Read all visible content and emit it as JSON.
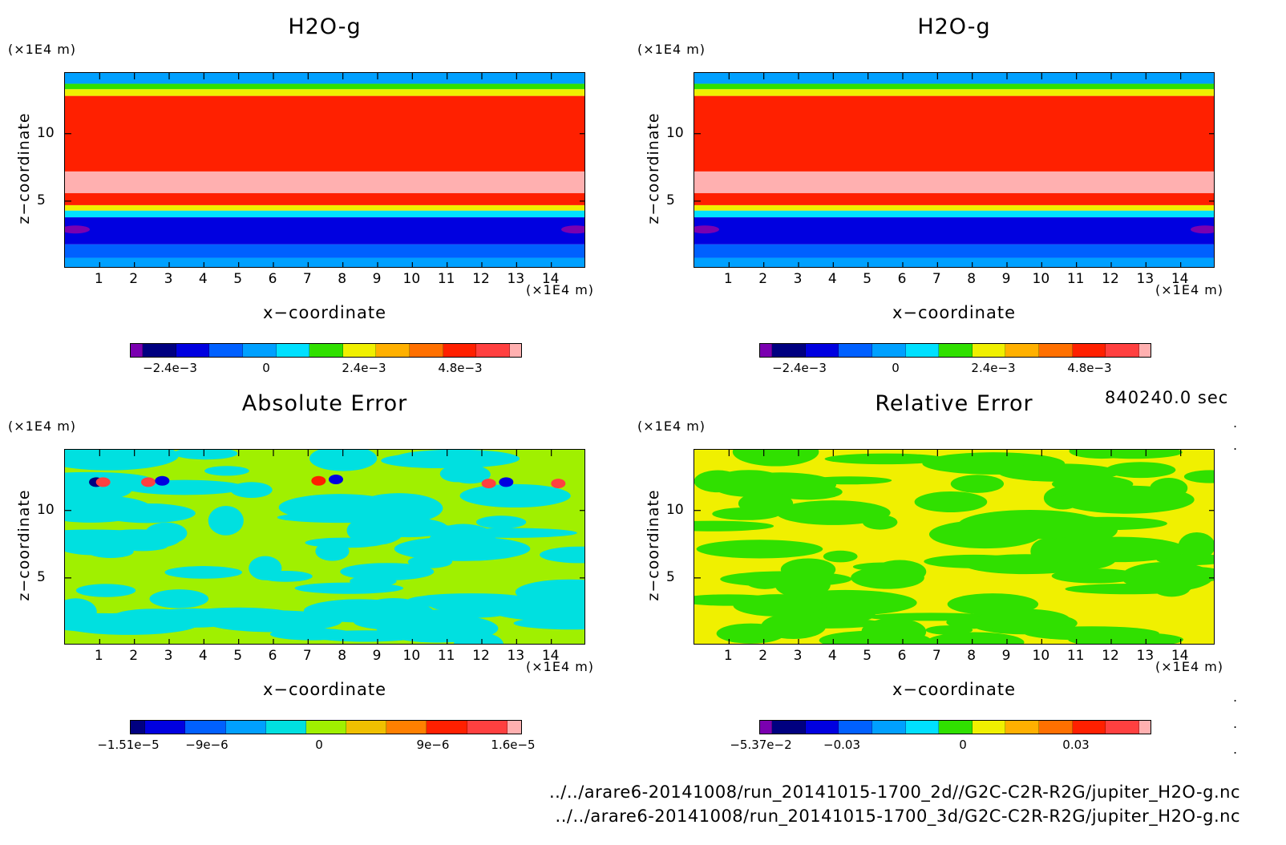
{
  "panels": [
    {
      "title": "H2O-g",
      "z_unit": "(×1E4 m)",
      "x_unit": "(×1E4 m)",
      "xlabel": "x−coordinate",
      "ylabel": "z−coordinate",
      "colorbar_labels": [
        "−2.4e−3",
        "0",
        "2.4e−3",
        "4.8e−3"
      ]
    },
    {
      "title": "H2O-g",
      "z_unit": "(×1E4 m)",
      "x_unit": "(×1E4 m)",
      "xlabel": "x−coordinate",
      "ylabel": "z−coordinate",
      "colorbar_labels": [
        "−2.4e−3",
        "0",
        "2.4e−3",
        "4.8e−3"
      ]
    },
    {
      "title": "Absolute Error",
      "z_unit": "(×1E4 m)",
      "x_unit": "(×1E4 m)",
      "xlabel": "x−coordinate",
      "ylabel": "z−coordinate",
      "colorbar_labels": [
        "−1.51e−5",
        "−9e−6",
        "0",
        "9e−6",
        "1.6e−5"
      ]
    },
    {
      "title": "Relative Error",
      "z_unit": "(×1E4 m)",
      "x_unit": "(×1E4 m)",
      "xlabel": "x−coordinate",
      "ylabel": "z−coordinate",
      "colorbar_labels": [
        "−5.37e−2",
        "−0.03",
        "0",
        "0.03"
      ]
    }
  ],
  "time_label": "840240.0 sec",
  "file_paths": [
    "../../arare6-20141008/run_20141015-1700_2d//G2C-C2R-R2G/jupiter_H2O-g.nc",
    "../../arare6-20141008/run_20141015-1700_3d/G2C-C2R-R2G/jupiter_H2O-g.nc"
  ],
  "chart_data": [
    {
      "type": "heatmap",
      "title": "H2O-g",
      "xlabel": "x−coordinate",
      "ylabel": "z−coordinate",
      "xlim": [
        0,
        15
      ],
      "ylim": [
        0,
        14.5
      ],
      "x_ticks": [
        1,
        2,
        3,
        4,
        5,
        6,
        7,
        8,
        9,
        10,
        11,
        12,
        13,
        14
      ],
      "y_ticks": [
        5,
        10
      ],
      "colorbar_ticks": [
        -0.0024,
        0,
        0.0024,
        0.0048
      ],
      "colors": [
        "#7a00b0",
        "#000080",
        "#0000e0",
        "#0060ff",
        "#00a0ff",
        "#00e0ff",
        "#30e000",
        "#f0f000",
        "#ffb000",
        "#ff7000",
        "#ff2000",
        "#ff4040",
        "#ffb0b0"
      ],
      "bands": [
        {
          "z": [
            0,
            0.8
          ],
          "level": 4
        },
        {
          "z": [
            0.8,
            1.8
          ],
          "level": 3
        },
        {
          "z": [
            1.8,
            3.8
          ],
          "level": 2
        },
        {
          "z": [
            3.8,
            4.3
          ],
          "level": 5
        },
        {
          "z": [
            4.3,
            4.7
          ],
          "level": 7
        },
        {
          "z": [
            4.7,
            5.6
          ],
          "level": 10
        },
        {
          "z": [
            5.6,
            7.2
          ],
          "level": 12
        },
        {
          "z": [
            7.2,
            12.8
          ],
          "level": 10
        },
        {
          "z": [
            12.8,
            13.3
          ],
          "level": 7
        },
        {
          "z": [
            13.3,
            13.7
          ],
          "level": 6
        },
        {
          "z": [
            13.7,
            14.5
          ],
          "level": 4
        }
      ]
    },
    {
      "type": "heatmap",
      "title": "H2O-g",
      "xlabel": "x−coordinate",
      "ylabel": "z−coordinate",
      "xlim": [
        0,
        15
      ],
      "ylim": [
        0,
        14.5
      ],
      "x_ticks": [
        1,
        2,
        3,
        4,
        5,
        6,
        7,
        8,
        9,
        10,
        11,
        12,
        13,
        14
      ],
      "y_ticks": [
        5,
        10
      ],
      "colorbar_ticks": [
        -0.0024,
        0,
        0.0024,
        0.0048
      ],
      "colors": [
        "#7a00b0",
        "#000080",
        "#0000e0",
        "#0060ff",
        "#00a0ff",
        "#00e0ff",
        "#30e000",
        "#f0f000",
        "#ffb000",
        "#ff7000",
        "#ff2000",
        "#ff4040",
        "#ffb0b0"
      ],
      "bands": [
        {
          "z": [
            0,
            0.8
          ],
          "level": 4
        },
        {
          "z": [
            0.8,
            1.8
          ],
          "level": 3
        },
        {
          "z": [
            1.8,
            3.8
          ],
          "level": 2
        },
        {
          "z": [
            3.8,
            4.3
          ],
          "level": 5
        },
        {
          "z": [
            4.3,
            4.7
          ],
          "level": 7
        },
        {
          "z": [
            4.7,
            5.6
          ],
          "level": 10
        },
        {
          "z": [
            5.6,
            7.2
          ],
          "level": 12
        },
        {
          "z": [
            7.2,
            12.8
          ],
          "level": 10
        },
        {
          "z": [
            12.8,
            13.3
          ],
          "level": 7
        },
        {
          "z": [
            13.3,
            13.7
          ],
          "level": 6
        },
        {
          "z": [
            13.7,
            14.5
          ],
          "level": 4
        }
      ]
    },
    {
      "type": "heatmap",
      "title": "Absolute Error",
      "xlabel": "x−coordinate",
      "ylabel": "z−coordinate",
      "xlim": [
        0,
        15
      ],
      "ylim": [
        0,
        14.5
      ],
      "x_ticks": [
        1,
        2,
        3,
        4,
        5,
        6,
        7,
        8,
        9,
        10,
        11,
        12,
        13,
        14
      ],
      "y_ticks": [
        5,
        10
      ],
      "colorbar_ticks": [
        -1.51e-05,
        -9e-06,
        0,
        9e-06,
        1.6e-05
      ],
      "colors": [
        "#000080",
        "#0000e0",
        "#0060ff",
        "#00a0ff",
        "#00e0e0",
        "#a0f000",
        "#f0c000",
        "#ff8000",
        "#ff2000",
        "#ff4040",
        "#ffb0b0"
      ],
      "base_level": 5,
      "alt_level": 4,
      "blobs": [
        {
          "x": 0.9,
          "z": 12.1,
          "level": 0
        },
        {
          "x": 1.1,
          "z": 12.1,
          "level": 9
        },
        {
          "x": 2.4,
          "z": 12.1,
          "level": 9
        },
        {
          "x": 2.8,
          "z": 12.2,
          "level": 1
        },
        {
          "x": 7.3,
          "z": 12.2,
          "level": 8
        },
        {
          "x": 7.8,
          "z": 12.3,
          "level": 1
        },
        {
          "x": 12.2,
          "z": 12.0,
          "level": 9
        },
        {
          "x": 12.7,
          "z": 12.1,
          "level": 1
        },
        {
          "x": 14.2,
          "z": 12.0,
          "level": 9
        }
      ]
    },
    {
      "type": "heatmap",
      "title": "Relative Error",
      "xlabel": "x−coordinate",
      "ylabel": "z−coordinate",
      "xlim": [
        0,
        15
      ],
      "ylim": [
        0,
        14.5
      ],
      "x_ticks": [
        1,
        2,
        3,
        4,
        5,
        6,
        7,
        8,
        9,
        10,
        11,
        12,
        13,
        14
      ],
      "y_ticks": [
        5,
        10
      ],
      "colorbar_ticks": [
        -0.0537,
        -0.03,
        0,
        0.03
      ],
      "colors": [
        "#7a00b0",
        "#000080",
        "#0000e0",
        "#0060ff",
        "#00a0ff",
        "#00e0ff",
        "#30e000",
        "#f0f000",
        "#ffb000",
        "#ff7000",
        "#ff2000",
        "#ff4040",
        "#ffb0b0"
      ],
      "base_level": 7,
      "alt_level": 6
    }
  ]
}
